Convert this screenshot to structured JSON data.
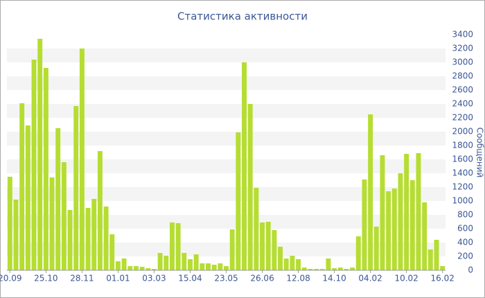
{
  "chart_data": {
    "type": "bar",
    "title": "Статистика активности",
    "y_axis_label": "Сообщений",
    "categories": [
      "20.09",
      null,
      null,
      null,
      null,
      null,
      "25.10",
      null,
      null,
      null,
      null,
      null,
      "28.11",
      null,
      null,
      null,
      null,
      null,
      "01.01",
      null,
      null,
      null,
      null,
      null,
      "03.03",
      null,
      null,
      null,
      null,
      null,
      "15.04",
      null,
      null,
      null,
      null,
      null,
      "23.05",
      null,
      null,
      null,
      null,
      null,
      "26.06",
      null,
      null,
      null,
      null,
      null,
      "12.08",
      null,
      null,
      null,
      null,
      null,
      "14.10",
      null,
      null,
      null,
      null,
      null,
      "04.02",
      null,
      null,
      null,
      null,
      null,
      "10.02",
      null,
      null,
      null,
      null,
      null,
      "16.02"
    ],
    "values": [
      1350,
      1020,
      2410,
      2090,
      3040,
      3340,
      2920,
      1340,
      2050,
      1560,
      870,
      2370,
      3200,
      900,
      1030,
      1720,
      920,
      520,
      130,
      170,
      60,
      60,
      50,
      30,
      20,
      250,
      210,
      690,
      680,
      250,
      160,
      230,
      100,
      100,
      80,
      100,
      60,
      590,
      1990,
      3000,
      2400,
      1190,
      690,
      700,
      580,
      340,
      170,
      210,
      160,
      40,
      20,
      20,
      20,
      170,
      30,
      40,
      20,
      40,
      490,
      1310,
      2250,
      630,
      1660,
      1140,
      1180,
      1400,
      1680,
      1300,
      1690,
      980,
      300,
      440,
      60
    ],
    "color": "#b5dd32",
    "ylim": [
      0,
      3400
    ],
    "yticks": [
      0,
      200,
      400,
      600,
      800,
      1000,
      1200,
      1400,
      1600,
      1800,
      2000,
      2200,
      2400,
      2600,
      2800,
      3000,
      3200,
      3400
    ],
    "grid": "bands",
    "y_axis_side": "right"
  }
}
